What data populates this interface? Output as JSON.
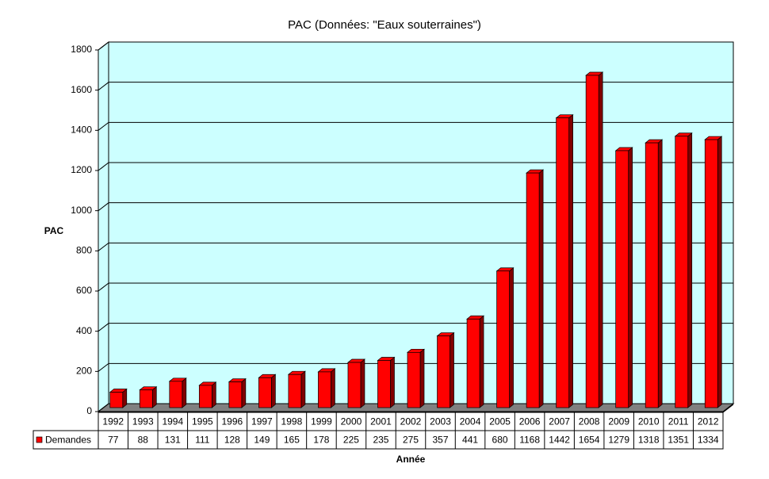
{
  "chart_data": {
    "type": "bar",
    "title": "PAC (Données: \"Eaux souterraines\")",
    "x_label": "Année",
    "y_label": "PAC",
    "categories": [
      "1992",
      "1993",
      "1994",
      "1995",
      "1996",
      "1997",
      "1998",
      "1999",
      "2000",
      "2001",
      "2002",
      "2003",
      "2004",
      "2005",
      "2006",
      "2007",
      "2008",
      "2009",
      "2010",
      "2011",
      "2012"
    ],
    "series": [
      {
        "name": "Demandes",
        "color": "#ff0000",
        "values": [
          77,
          88,
          131,
          111,
          128,
          149,
          165,
          178,
          225,
          235,
          275,
          357,
          441,
          680,
          1168,
          1442,
          1654,
          1279,
          1318,
          1351,
          1334
        ]
      }
    ],
    "ylim": [
      0,
      1800
    ],
    "yticks": [
      0,
      200,
      400,
      600,
      800,
      1000,
      1200,
      1400,
      1600,
      1800
    ],
    "grid": true
  }
}
